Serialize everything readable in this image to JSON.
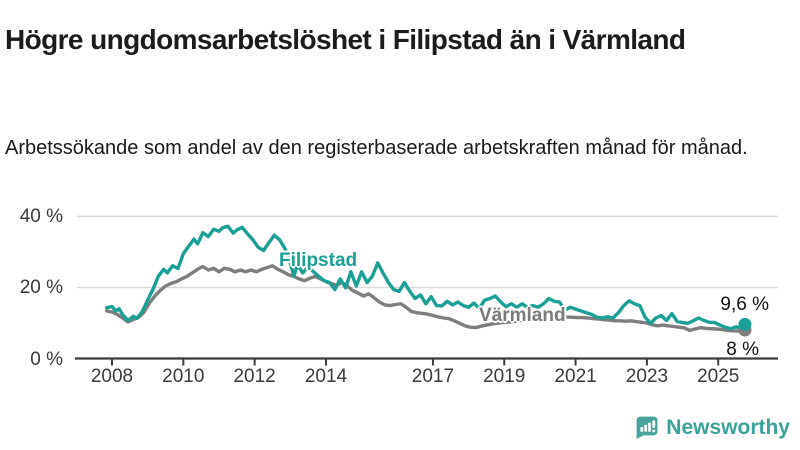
{
  "header": {
    "title": "Högre ungdomsarbetslöshet i Filipstad än i Värmland",
    "subtitle": "Arbetssökande som andel av den registerbaserade arbetskraften månad för månad."
  },
  "footer": {
    "brand": "Newsworthy",
    "brand_color": "#3aa39a",
    "logo_icon": "newsworthy-speech-bubble-bar-chart-icon"
  },
  "chart_data": {
    "type": "line",
    "title": "Högre ungdomsarbetslöshet i Filipstad än i Värmland",
    "subtitle": "Arbetssökande som andel av den registerbaserade arbetskraften månad för månad.",
    "grid": true,
    "legend_position": "inline-labels-on-lines",
    "colors": {
      "filipstad": "#1aa096",
      "varmland": "#7e7e7e",
      "grid": "#d9d9d9",
      "axis": "#3c3c3c"
    },
    "x_axis": {
      "label": "",
      "range": [
        2007.85,
        2026.2
      ],
      "ticks": [
        2008,
        2010,
        2012,
        2014,
        2017,
        2019,
        2021,
        2023,
        2025
      ]
    },
    "y_axis": {
      "label": "",
      "range": [
        0,
        40
      ],
      "ticks": [
        {
          "value": 0,
          "label": "0 %"
        },
        {
          "value": 20,
          "label": "20 %"
        },
        {
          "value": 40,
          "label": "40 %"
        }
      ]
    },
    "series": [
      {
        "name": "Filipstad",
        "color": "#1aa096",
        "end_label": "9,6 %",
        "end_value": 9.6,
        "points": [
          [
            2007.85,
            14.3
          ],
          [
            2008.0,
            14.6
          ],
          [
            2008.1,
            13.4
          ],
          [
            2008.2,
            14.0
          ],
          [
            2008.3,
            12.3
          ],
          [
            2008.45,
            10.7
          ],
          [
            2008.6,
            11.9
          ],
          [
            2008.7,
            11.3
          ],
          [
            2008.85,
            13.2
          ],
          [
            2009.0,
            16.5
          ],
          [
            2009.15,
            19.5
          ],
          [
            2009.3,
            23.2
          ],
          [
            2009.45,
            25.1
          ],
          [
            2009.55,
            24.1
          ],
          [
            2009.7,
            26.1
          ],
          [
            2009.85,
            25.3
          ],
          [
            2010.0,
            29.5
          ],
          [
            2010.15,
            31.6
          ],
          [
            2010.3,
            33.6
          ],
          [
            2010.4,
            32.3
          ],
          [
            2010.55,
            35.4
          ],
          [
            2010.7,
            34.3
          ],
          [
            2010.85,
            36.4
          ],
          [
            2011.0,
            35.8
          ],
          [
            2011.1,
            36.8
          ],
          [
            2011.25,
            37.2
          ],
          [
            2011.4,
            35.3
          ],
          [
            2011.5,
            36.2
          ],
          [
            2011.65,
            36.9
          ],
          [
            2011.8,
            35.1
          ],
          [
            2011.95,
            33.4
          ],
          [
            2012.1,
            31.3
          ],
          [
            2012.25,
            30.4
          ],
          [
            2012.4,
            32.6
          ],
          [
            2012.55,
            34.7
          ],
          [
            2012.7,
            33.4
          ],
          [
            2012.85,
            30.9
          ],
          [
            2013.0,
            26.9
          ],
          [
            2013.1,
            23.2
          ],
          [
            2013.2,
            26.3
          ],
          [
            2013.35,
            24.1
          ],
          [
            2013.5,
            25.9
          ],
          [
            2013.65,
            24.4
          ],
          [
            2013.8,
            23.1
          ],
          [
            2013.95,
            21.9
          ],
          [
            2014.1,
            21.4
          ],
          [
            2014.25,
            19.4
          ],
          [
            2014.4,
            22.4
          ],
          [
            2014.55,
            19.9
          ],
          [
            2014.7,
            24.4
          ],
          [
            2014.85,
            20.4
          ],
          [
            2015.0,
            24.4
          ],
          [
            2015.15,
            21.4
          ],
          [
            2015.3,
            23.1
          ],
          [
            2015.45,
            26.9
          ],
          [
            2015.6,
            24.1
          ],
          [
            2015.75,
            21.4
          ],
          [
            2015.9,
            19.4
          ],
          [
            2016.05,
            18.9
          ],
          [
            2016.2,
            21.4
          ],
          [
            2016.35,
            18.9
          ],
          [
            2016.5,
            16.9
          ],
          [
            2016.65,
            17.9
          ],
          [
            2016.8,
            15.4
          ],
          [
            2016.95,
            17.4
          ],
          [
            2017.1,
            14.9
          ],
          [
            2017.25,
            14.8
          ],
          [
            2017.4,
            16.1
          ],
          [
            2017.55,
            15.1
          ],
          [
            2017.7,
            15.9
          ],
          [
            2017.85,
            14.9
          ],
          [
            2018.0,
            14.4
          ],
          [
            2018.15,
            15.6
          ],
          [
            2018.3,
            14.1
          ],
          [
            2018.45,
            16.4
          ],
          [
            2018.6,
            16.9
          ],
          [
            2018.75,
            17.6
          ],
          [
            2018.9,
            15.9
          ],
          [
            2019.05,
            14.6
          ],
          [
            2019.2,
            15.4
          ],
          [
            2019.35,
            14.4
          ],
          [
            2019.5,
            15.4
          ],
          [
            2019.65,
            14.4
          ],
          [
            2019.8,
            14.9
          ],
          [
            2019.95,
            14.4
          ],
          [
            2020.1,
            15.4
          ],
          [
            2020.25,
            16.9
          ],
          [
            2020.4,
            16.1
          ],
          [
            2020.55,
            15.9
          ],
          [
            2020.7,
            13.6
          ],
          [
            2020.85,
            14.4
          ],
          [
            2021.0,
            13.9
          ],
          [
            2021.15,
            13.4
          ],
          [
            2021.3,
            12.9
          ],
          [
            2021.45,
            12.4
          ],
          [
            2021.6,
            11.6
          ],
          [
            2021.75,
            11.4
          ],
          [
            2021.9,
            11.8
          ],
          [
            2022.05,
            11.4
          ],
          [
            2022.2,
            12.9
          ],
          [
            2022.35,
            14.9
          ],
          [
            2022.5,
            16.2
          ],
          [
            2022.65,
            15.4
          ],
          [
            2022.8,
            14.9
          ],
          [
            2022.95,
            11.6
          ],
          [
            2023.1,
            9.9
          ],
          [
            2023.25,
            11.4
          ],
          [
            2023.4,
            12.1
          ],
          [
            2023.55,
            10.7
          ],
          [
            2023.7,
            12.6
          ],
          [
            2023.85,
            10.4
          ],
          [
            2024.0,
            10.1
          ],
          [
            2024.15,
            9.9
          ],
          [
            2024.3,
            10.6
          ],
          [
            2024.45,
            11.4
          ],
          [
            2024.6,
            10.7
          ],
          [
            2024.75,
            10.2
          ],
          [
            2024.9,
            10.1
          ],
          [
            2025.05,
            9.4
          ],
          [
            2025.2,
            8.8
          ],
          [
            2025.35,
            8.4
          ],
          [
            2025.5,
            8.9
          ],
          [
            2025.6,
            8.6
          ],
          [
            2025.75,
            9.6
          ]
        ]
      },
      {
        "name": "Värmland",
        "color": "#7e7e7e",
        "end_label": "8 %",
        "end_value": 8.0,
        "points": [
          [
            2007.85,
            13.4
          ],
          [
            2008.0,
            13.1
          ],
          [
            2008.15,
            12.4
          ],
          [
            2008.3,
            11.4
          ],
          [
            2008.45,
            10.3
          ],
          [
            2008.6,
            11.0
          ],
          [
            2008.75,
            11.6
          ],
          [
            2008.9,
            13.1
          ],
          [
            2009.05,
            15.6
          ],
          [
            2009.2,
            17.6
          ],
          [
            2009.35,
            19.1
          ],
          [
            2009.5,
            20.4
          ],
          [
            2009.65,
            21.1
          ],
          [
            2009.8,
            21.6
          ],
          [
            2009.95,
            22.4
          ],
          [
            2010.1,
            23.1
          ],
          [
            2010.25,
            24.1
          ],
          [
            2010.4,
            25.1
          ],
          [
            2010.55,
            25.9
          ],
          [
            2010.7,
            24.9
          ],
          [
            2010.85,
            25.4
          ],
          [
            2011.0,
            24.4
          ],
          [
            2011.15,
            25.4
          ],
          [
            2011.3,
            25.1
          ],
          [
            2011.45,
            24.4
          ],
          [
            2011.6,
            24.9
          ],
          [
            2011.75,
            24.4
          ],
          [
            2011.9,
            24.9
          ],
          [
            2012.05,
            24.4
          ],
          [
            2012.2,
            25.1
          ],
          [
            2012.35,
            25.6
          ],
          [
            2012.5,
            26.1
          ],
          [
            2012.65,
            25.1
          ],
          [
            2012.8,
            24.4
          ],
          [
            2012.95,
            23.6
          ],
          [
            2013.1,
            23.1
          ],
          [
            2013.25,
            22.4
          ],
          [
            2013.4,
            21.9
          ],
          [
            2013.55,
            22.6
          ],
          [
            2013.7,
            23.1
          ],
          [
            2013.85,
            22.4
          ],
          [
            2014.0,
            21.6
          ],
          [
            2014.15,
            21.1
          ],
          [
            2014.3,
            20.6
          ],
          [
            2014.45,
            21.4
          ],
          [
            2014.6,
            20.4
          ],
          [
            2014.75,
            19.1
          ],
          [
            2014.9,
            18.4
          ],
          [
            2015.05,
            17.6
          ],
          [
            2015.2,
            18.2
          ],
          [
            2015.35,
            17.1
          ],
          [
            2015.5,
            15.9
          ],
          [
            2015.65,
            15.1
          ],
          [
            2015.8,
            14.9
          ],
          [
            2015.95,
            15.2
          ],
          [
            2016.1,
            15.4
          ],
          [
            2016.25,
            14.4
          ],
          [
            2016.4,
            13.2
          ],
          [
            2016.55,
            12.9
          ],
          [
            2016.7,
            12.7
          ],
          [
            2016.85,
            12.5
          ],
          [
            2017.0,
            12.1
          ],
          [
            2017.15,
            11.7
          ],
          [
            2017.3,
            11.4
          ],
          [
            2017.45,
            11.2
          ],
          [
            2017.6,
            10.6
          ],
          [
            2017.75,
            9.9
          ],
          [
            2017.9,
            9.2
          ],
          [
            2018.05,
            8.8
          ],
          [
            2018.2,
            8.7
          ],
          [
            2018.35,
            9.1
          ],
          [
            2018.5,
            9.4
          ],
          [
            2018.65,
            9.7
          ],
          [
            2018.8,
            9.9
          ],
          [
            2018.95,
            10.1
          ],
          [
            2019.1,
            10.3
          ],
          [
            2019.25,
            10.4
          ],
          [
            2019.4,
            10.6
          ],
          [
            2019.55,
            10.8
          ],
          [
            2019.7,
            10.9
          ],
          [
            2019.85,
            11.1
          ],
          [
            2020.0,
            11.2
          ],
          [
            2020.15,
            11.9
          ],
          [
            2020.3,
            12.2
          ],
          [
            2020.45,
            12.1
          ],
          [
            2020.6,
            11.9
          ],
          [
            2020.75,
            11.7
          ],
          [
            2020.9,
            11.6
          ],
          [
            2021.05,
            11.5
          ],
          [
            2021.2,
            11.5
          ],
          [
            2021.35,
            11.4
          ],
          [
            2021.5,
            11.2
          ],
          [
            2021.65,
            11.1
          ],
          [
            2021.8,
            10.9
          ],
          [
            2021.95,
            10.8
          ],
          [
            2022.1,
            10.6
          ],
          [
            2022.25,
            10.6
          ],
          [
            2022.4,
            10.5
          ],
          [
            2022.55,
            10.6
          ],
          [
            2022.7,
            10.4
          ],
          [
            2022.85,
            10.2
          ],
          [
            2023.0,
            10.0
          ],
          [
            2023.15,
            9.5
          ],
          [
            2023.3,
            9.2
          ],
          [
            2023.45,
            9.4
          ],
          [
            2023.6,
            9.2
          ],
          [
            2023.75,
            9.0
          ],
          [
            2023.9,
            8.8
          ],
          [
            2024.05,
            8.6
          ],
          [
            2024.2,
            7.9
          ],
          [
            2024.35,
            8.3
          ],
          [
            2024.5,
            8.7
          ],
          [
            2024.65,
            8.5
          ],
          [
            2024.8,
            8.4
          ],
          [
            2024.95,
            8.3
          ],
          [
            2025.1,
            8.2
          ],
          [
            2025.25,
            7.9
          ],
          [
            2025.4,
            7.8
          ],
          [
            2025.55,
            7.7
          ],
          [
            2025.75,
            8.0
          ]
        ]
      }
    ]
  }
}
